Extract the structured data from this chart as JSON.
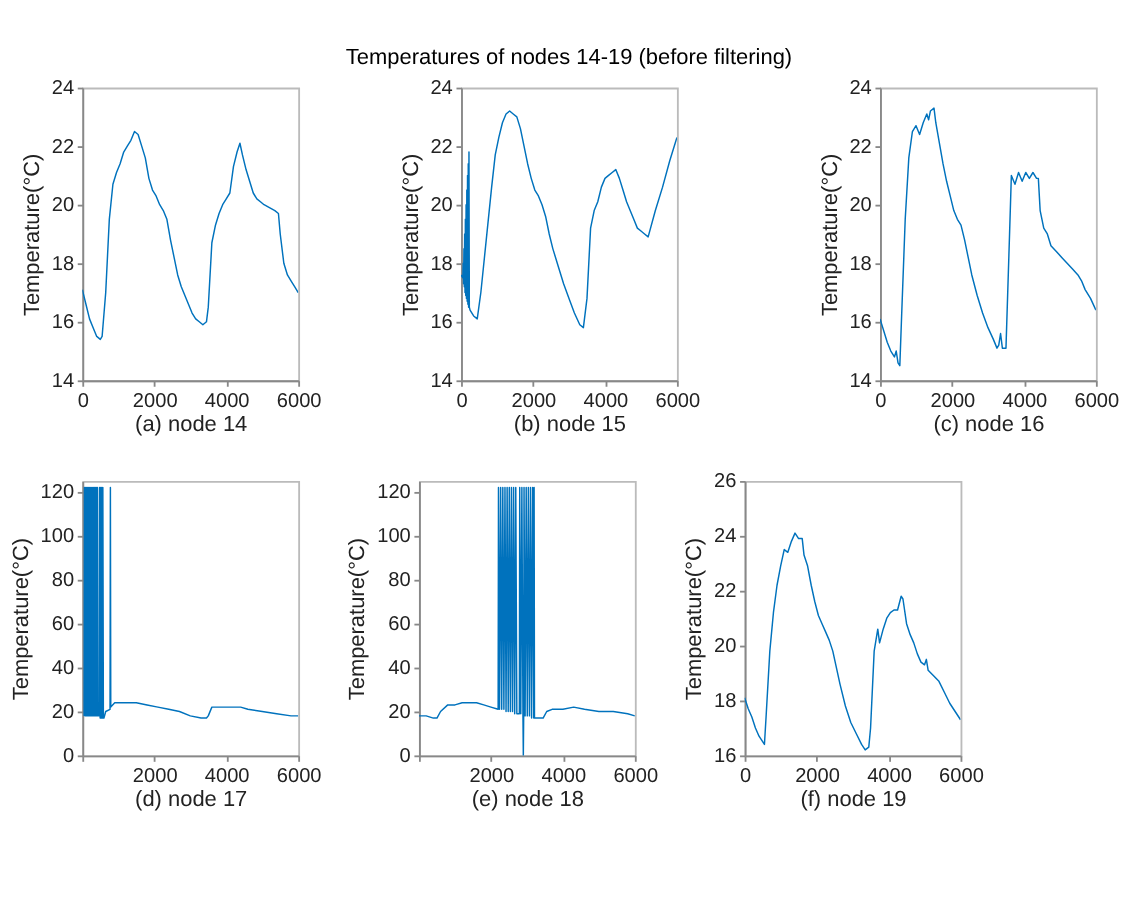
{
  "chart_data": [
    {
      "type": "line",
      "xlabel": "(a) node 14",
      "ylabel": "Temperature(°C)",
      "xlim": [
        0,
        6000
      ],
      "ylim": [
        14,
        24
      ],
      "xticks": [
        0,
        2000,
        4000,
        6000
      ],
      "yticks": [
        14,
        16,
        18,
        20,
        22,
        24
      ],
      "grid": false,
      "series": [
        {
          "color": "#0072bd",
          "x": [
            0,
            100,
            200,
            300,
            400,
            500,
            550,
            650,
            750,
            850,
            950,
            1050,
            1150,
            1250,
            1350,
            1450,
            1550,
            1650,
            1750,
            1850,
            1950,
            2050,
            2150,
            2250,
            2350,
            2450,
            2550,
            2650,
            2750,
            2850,
            2950,
            3050,
            3150,
            3250,
            3350,
            3450,
            3500,
            3600,
            3700,
            3800,
            3900,
            4000,
            4100,
            4200,
            4300,
            4380,
            4450,
            4550,
            4650,
            4750,
            4850,
            4950,
            5050,
            5200,
            5350,
            5450,
            5500,
            5600,
            5700,
            5800,
            5900,
            6000
          ],
          "values": [
            17.1,
            16.6,
            16.1,
            15.8,
            15.5,
            15.4,
            15.5,
            17,
            19.5,
            20.7,
            21.1,
            21.4,
            21.8,
            22.0,
            22.2,
            22.5,
            22.4,
            22.0,
            21.6,
            20.9,
            20.5,
            20.3,
            20.0,
            19.8,
            19.5,
            18.8,
            18.2,
            17.6,
            17.2,
            16.9,
            16.6,
            16.3,
            16.1,
            16.0,
            15.9,
            16.0,
            16.5,
            18.7,
            19.3,
            19.7,
            20.0,
            20.2,
            20.4,
            21.3,
            21.8,
            22.1,
            21.7,
            21.2,
            20.8,
            20.4,
            20.2,
            20.1,
            20.0,
            19.9,
            19.8,
            19.7,
            19.0,
            18.0,
            17.6,
            17.4,
            17.2,
            17.0
          ]
        }
      ]
    },
    {
      "type": "line",
      "title": "Temperatures of nodes 14-19 (before filtering)",
      "xlabel": "(b) node 15",
      "ylabel": "Temperature(°C)",
      "xlim": [
        0,
        6000
      ],
      "ylim": [
        14,
        24
      ],
      "xticks": [
        0,
        2000,
        4000,
        6000
      ],
      "yticks": [
        14,
        16,
        18,
        20,
        22,
        24
      ],
      "grid": false,
      "series": [
        {
          "color": "#0072bd",
          "x": [
            0,
            50,
            60,
            70,
            80,
            90,
            100,
            110,
            120,
            130,
            140,
            150,
            160,
            170,
            180,
            190,
            200,
            210,
            220,
            230,
            250,
            350,
            450,
            550,
            700,
            850,
            950,
            1050,
            1150,
            1250,
            1350,
            1450,
            1550,
            1650,
            1750,
            1850,
            1950,
            2050,
            2150,
            2250,
            2350,
            2450,
            2550,
            2700,
            2850,
            3000,
            3150,
            3300,
            3400,
            3500,
            3600,
            3700,
            3800,
            3900,
            4000,
            4100,
            4200,
            4300,
            4400,
            4500,
            4600,
            4700,
            4800,
            4900,
            5000,
            5100,
            5200,
            5400,
            5600,
            5800,
            6000
          ],
          "values": [
            17.6,
            17.5,
            18.0,
            17.3,
            18.5,
            17.2,
            19.0,
            17.0,
            19.5,
            16.9,
            20.0,
            16.8,
            20.5,
            16.7,
            21.0,
            16.6,
            21.4,
            16.5,
            21.8,
            16.5,
            16.4,
            16.2,
            16.1,
            17.0,
            18.8,
            20.6,
            21.7,
            22.3,
            22.8,
            23.1,
            23.2,
            23.1,
            23.0,
            22.6,
            22.0,
            21.4,
            20.9,
            20.5,
            20.3,
            20.0,
            19.6,
            19.0,
            18.5,
            17.9,
            17.3,
            16.8,
            16.3,
            15.9,
            15.8,
            16.8,
            19.2,
            19.8,
            20.1,
            20.6,
            20.9,
            21.0,
            21.1,
            21.2,
            20.9,
            20.5,
            20.1,
            19.8,
            19.5,
            19.2,
            19.1,
            19.0,
            18.9,
            19.8,
            20.6,
            21.5,
            22.3
          ]
        }
      ]
    },
    {
      "type": "line",
      "xlabel": "(c) node 16",
      "ylabel": "Temperature(°C)",
      "xlim": [
        0,
        6000
      ],
      "ylim": [
        14,
        24
      ],
      "xticks": [
        0,
        2000,
        4000,
        6000
      ],
      "yticks": [
        14,
        16,
        18,
        20,
        22,
        24
      ],
      "grid": false,
      "series": [
        {
          "color": "#0072bd",
          "x": [
            0,
            100,
            200,
            300,
            400,
            450,
            500,
            550,
            600,
            700,
            800,
            900,
            1000,
            1100,
            1200,
            1300,
            1350,
            1400,
            1500,
            1550,
            1650,
            1750,
            1850,
            1950,
            2050,
            2150,
            2250,
            2350,
            2450,
            2550,
            2700,
            2850,
            3000,
            3150,
            3250,
            3300,
            3350,
            3400,
            3500,
            3600,
            3650,
            3750,
            3850,
            3950,
            4050,
            4150,
            4250,
            4350,
            4400,
            4450,
            4550,
            4650,
            4750,
            4900,
            5050,
            5200,
            5350,
            5500,
            5600,
            5700,
            5850,
            6000
          ],
          "values": [
            16.1,
            15.7,
            15.3,
            15.0,
            14.8,
            15.0,
            14.6,
            14.5,
            16.2,
            19.5,
            21.6,
            22.5,
            22.7,
            22.4,
            22.8,
            23.1,
            22.9,
            23.2,
            23.3,
            22.8,
            22.1,
            21.4,
            20.8,
            20.3,
            19.8,
            19.5,
            19.3,
            18.8,
            18.2,
            17.6,
            16.9,
            16.3,
            15.8,
            15.4,
            15.1,
            15.2,
            15.6,
            15.1,
            15.1,
            19.0,
            21.0,
            20.7,
            21.1,
            20.8,
            21.1,
            20.9,
            21.1,
            20.9,
            20.9,
            19.8,
            19.2,
            19.0,
            18.6,
            18.4,
            18.2,
            18.0,
            17.8,
            17.6,
            17.4,
            17.1,
            16.8,
            16.4
          ]
        }
      ]
    },
    {
      "type": "line",
      "xlabel": "(d) node 17",
      "ylabel": "Temperature(°C)",
      "xlim": [
        0,
        6000
      ],
      "ylim": [
        0,
        125
      ],
      "xticks": [
        {
          "value": 0,
          "label": null
        },
        2000,
        4000,
        6000
      ],
      "yticks": [
        0,
        20,
        40,
        60,
        80,
        100,
        120
      ],
      "grid": false,
      "series": [
        {
          "color": "#0072bd",
          "x": [
            50,
            60,
            75,
            90,
            105,
            120,
            135,
            150,
            165,
            180,
            195,
            210,
            225,
            240,
            255,
            270,
            285,
            300,
            315,
            330,
            345,
            360,
            375,
            390,
            405,
            420,
            430,
            470,
            480,
            495,
            510,
            525,
            540,
            555,
            570,
            585,
            600,
            650,
            770,
            780,
            790,
            900,
            1200,
            1500,
            1800,
            2100,
            2400,
            2700,
            3000,
            3300,
            3450,
            3500,
            3600,
            3800,
            4000,
            4200,
            4400,
            4600,
            5000,
            5400,
            5800,
            6000
          ],
          "values": [
            18,
            122,
            18,
            122,
            18,
            122,
            18,
            122,
            18,
            122,
            18,
            122,
            18,
            122,
            18,
            122,
            18,
            122,
            18,
            122,
            18,
            122,
            18,
            122,
            18,
            122,
            18,
            18,
            122,
            17,
            122,
            17,
            122,
            17,
            122,
            17,
            17,
            20,
            21,
            122,
            22,
            24,
            24,
            24,
            23,
            22,
            21,
            20,
            18,
            17,
            17,
            18,
            22,
            22,
            22,
            22,
            22,
            21,
            20,
            19,
            18,
            18
          ]
        }
      ]
    },
    {
      "type": "line",
      "xlabel": "(e) node 18",
      "ylabel": "Temperature(°C)",
      "xlim": [
        0,
        6000
      ],
      "ylim": [
        0,
        125
      ],
      "xticks": [
        {
          "value": 0,
          "label": null
        },
        2000,
        4000,
        6000
      ],
      "yticks": [
        0,
        20,
        40,
        60,
        80,
        100,
        120
      ],
      "grid": false,
      "series": [
        {
          "color": "#0072bd",
          "x": [
            0,
            200,
            400,
            500,
            600,
            800,
            1000,
            1200,
            1400,
            1600,
            1800,
            2000,
            2200,
            2210,
            2240,
            2270,
            2300,
            2330,
            2360,
            2390,
            2420,
            2450,
            2480,
            2510,
            2540,
            2570,
            2600,
            2630,
            2660,
            2690,
            2720,
            2790,
            2800,
            2830,
            2860,
            2890,
            2900,
            2910,
            2920,
            2950,
            2980,
            3010,
            3040,
            3070,
            3100,
            3130,
            3160,
            3190,
            3200,
            3210,
            3300,
            3450,
            3550,
            3700,
            4000,
            4300,
            4600,
            5000,
            5400,
            5800,
            6000
          ],
          "values": [
            18,
            18,
            17,
            17,
            20,
            23,
            23,
            24,
            24,
            24,
            23,
            22,
            21,
            122,
            21,
            122,
            21,
            122,
            21,
            122,
            20,
            122,
            20,
            122,
            20,
            122,
            20,
            122,
            19,
            122,
            19,
            19,
            122,
            19,
            122,
            18,
            0,
            18,
            122,
            18,
            122,
            18,
            122,
            18,
            122,
            17,
            122,
            17,
            122,
            17,
            17,
            17,
            20,
            21,
            21,
            22,
            21,
            20,
            20,
            19,
            18
          ]
        }
      ]
    },
    {
      "type": "line",
      "xlabel": "(f) node 19",
      "ylabel": "Temperature(°C)",
      "xlim": [
        0,
        6000
      ],
      "ylim": [
        16,
        26
      ],
      "xticks": [
        0,
        2000,
        4000,
        6000
      ],
      "yticks": [
        16,
        18,
        20,
        22,
        24,
        26
      ],
      "grid": false,
      "series": [
        {
          "color": "#0072bd",
          "x": [
            0,
            100,
            200,
            300,
            400,
            500,
            550,
            600,
            700,
            800,
            900,
            1000,
            1100,
            1200,
            1300,
            1400,
            1450,
            1500,
            1600,
            1650,
            1750,
            1850,
            1950,
            2050,
            2150,
            2250,
            2350,
            2450,
            2550,
            2650,
            2800,
            2950,
            3100,
            3250,
            3350,
            3450,
            3500,
            3600,
            3700,
            3750,
            3850,
            3950,
            4050,
            4150,
            4250,
            4350,
            4400,
            4500,
            4600,
            4700,
            4800,
            4900,
            5000,
            5050,
            5100,
            5250,
            5400,
            5550,
            5700,
            5850,
            6000
          ],
          "values": [
            18.1,
            17.7,
            17.4,
            17.0,
            16.7,
            16.5,
            16.4,
            17.5,
            19.8,
            21.2,
            22.2,
            22.9,
            23.5,
            23.4,
            23.8,
            24.1,
            24.0,
            23.9,
            23.9,
            23.3,
            22.9,
            22.2,
            21.6,
            21.1,
            20.8,
            20.5,
            20.2,
            19.8,
            19.2,
            18.6,
            17.8,
            17.2,
            16.8,
            16.4,
            16.2,
            16.3,
            17.0,
            19.8,
            20.6,
            20.1,
            20.6,
            21.0,
            21.2,
            21.3,
            21.3,
            21.8,
            21.7,
            20.8,
            20.4,
            20.1,
            19.7,
            19.4,
            19.3,
            19.5,
            19.1,
            18.9,
            18.7,
            18.3,
            17.9,
            17.6,
            17.3
          ]
        }
      ]
    }
  ]
}
